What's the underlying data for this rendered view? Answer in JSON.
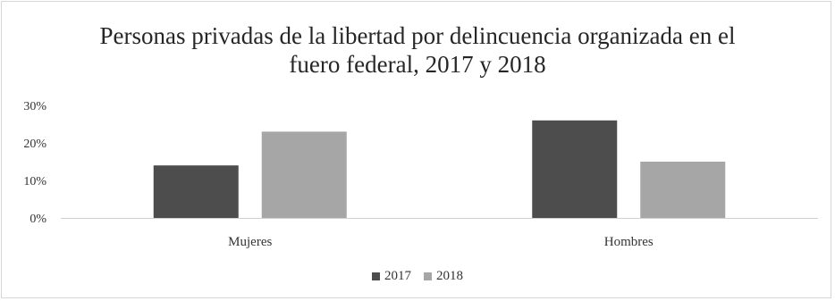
{
  "chart_data": {
    "type": "bar",
    "title": "Personas privadas de la libertad por delincuencia organizada en el fuero federal, 2017 y 2018",
    "title_lines": [
      "Personas privadas de la libertad por delincuencia organizada en el",
      "fuero federal, 2017 y 2018"
    ],
    "categories": [
      "Mujeres",
      "Hombres"
    ],
    "series": [
      {
        "name": "2017",
        "values": [
          14,
          26
        ],
        "color": "#4d4d4d"
      },
      {
        "name": "2018",
        "values": [
          23,
          15
        ],
        "color": "#a6a6a6"
      }
    ],
    "yticks": [
      "0%",
      "10%",
      "20%",
      "30%"
    ],
    "ylim": [
      0,
      30
    ],
    "xlabel": "",
    "ylabel": "",
    "grid": false,
    "legend_position": "bottom"
  }
}
